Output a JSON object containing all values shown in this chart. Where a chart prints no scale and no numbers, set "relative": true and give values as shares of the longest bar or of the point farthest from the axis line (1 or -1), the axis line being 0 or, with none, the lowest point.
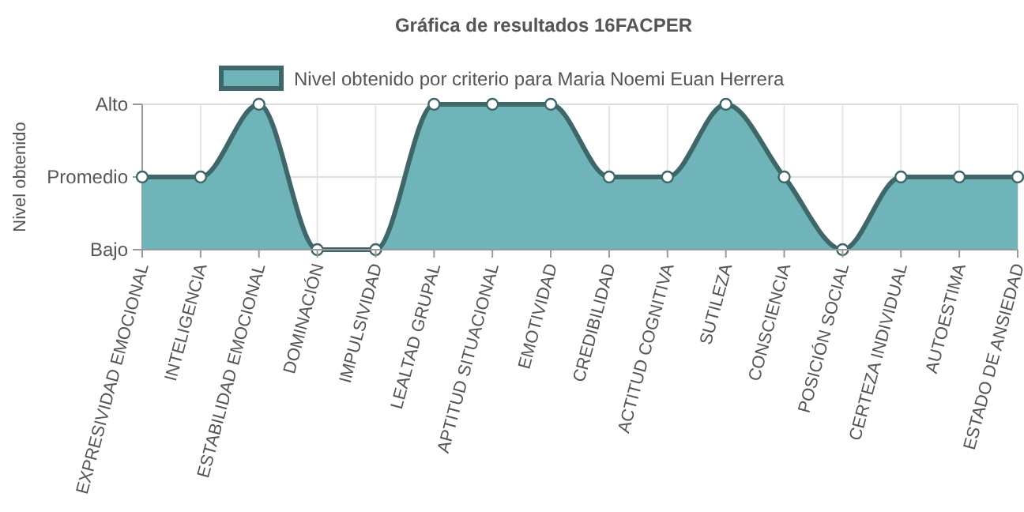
{
  "chart_data": {
    "type": "area",
    "title": "Gráfica de resultados 16FACPER",
    "ylabel": "Nivel obtenido",
    "categories": [
      "EXPRESIVIDAD EMOCIONAL",
      "INTELIGENCIA",
      "ESTABILIDAD EMOCIONAL",
      "DOMINACIÓN",
      "IMPULSIVIDAD",
      "LEALTAD GRUPAL",
      "APTITUD SITUACIONAL",
      "EMOTIVIDAD",
      "CREDIBILIDAD",
      "ACTITUD COGNITIVA",
      "SUTILEZA",
      "CONSCIENCIA",
      "POSICIÓN SOCIAL",
      "CERTEZA INDIVIDUAL",
      "AUTOESTIMA",
      "ESTADO DE ANSIEDAD"
    ],
    "series": [
      {
        "name": "Nivel obtenido por criterio para Maria Noemi Euan Herrera",
        "color": "#6fb4b8",
        "values": [
          0.5,
          0.5,
          1,
          0,
          0,
          1,
          1,
          1,
          0.5,
          0.5,
          1,
          0.5,
          0,
          0.5,
          0.5,
          0.5
        ]
      }
    ],
    "relative": true,
    "annotations": [
      "Alto",
      "Promedio",
      "Bajo"
    ],
    "grid": true,
    "legend": "top",
    "marker": "circle",
    "line_style": "solid"
  }
}
